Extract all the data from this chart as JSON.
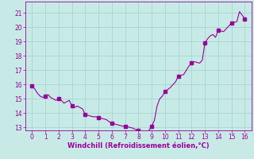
{
  "xlabel": "Windchill (Refroidissement éolien,°C)",
  "background_color": "#c8eae6",
  "line_color": "#990099",
  "marker_color": "#990099",
  "grid_color": "#aad8d4",
  "label_color": "#990099",
  "xlim": [
    -0.5,
    16.5
  ],
  "ylim": [
    12.8,
    21.8
  ],
  "xticks": [
    0,
    1,
    2,
    3,
    4,
    5,
    6,
    7,
    8,
    9,
    10,
    11,
    12,
    13,
    14,
    15,
    16
  ],
  "yticks": [
    13,
    14,
    15,
    16,
    17,
    18,
    19,
    20,
    21
  ],
  "x": [
    0.0,
    0.2,
    0.4,
    0.6,
    0.8,
    1.0,
    1.2,
    1.4,
    1.6,
    1.8,
    2.0,
    2.2,
    2.4,
    2.6,
    2.8,
    3.0,
    3.2,
    3.4,
    3.6,
    3.8,
    4.0,
    4.2,
    4.4,
    4.6,
    4.8,
    5.0,
    5.2,
    5.4,
    5.6,
    5.8,
    6.0,
    6.2,
    6.4,
    6.6,
    6.8,
    7.0,
    7.2,
    7.4,
    7.6,
    7.8,
    8.0,
    8.2,
    8.4,
    8.6,
    8.8,
    9.0,
    9.2,
    9.4,
    9.6,
    9.8,
    10.0,
    10.2,
    10.4,
    10.6,
    10.8,
    11.0,
    11.2,
    11.4,
    11.6,
    11.8,
    12.0,
    12.2,
    12.4,
    12.6,
    12.8,
    13.0,
    13.2,
    13.4,
    13.6,
    13.8,
    14.0,
    14.2,
    14.4,
    14.6,
    14.8,
    15.0,
    15.2,
    15.4,
    15.6,
    15.8,
    16.0
  ],
  "y": [
    15.9,
    15.7,
    15.4,
    15.2,
    15.1,
    15.2,
    15.3,
    15.1,
    15.0,
    14.9,
    15.0,
    14.9,
    14.7,
    14.8,
    14.9,
    14.5,
    14.4,
    14.5,
    14.4,
    14.3,
    13.9,
    13.85,
    13.8,
    13.75,
    13.75,
    13.7,
    13.65,
    13.6,
    13.55,
    13.4,
    13.3,
    13.25,
    13.2,
    13.15,
    13.1,
    13.1,
    13.05,
    13.0,
    12.95,
    12.85,
    12.8,
    12.75,
    12.72,
    12.75,
    12.8,
    13.1,
    13.5,
    14.5,
    15.0,
    15.2,
    15.5,
    15.65,
    15.8,
    16.0,
    16.2,
    16.6,
    16.65,
    16.7,
    17.0,
    17.3,
    17.5,
    17.6,
    17.55,
    17.5,
    17.7,
    18.9,
    19.2,
    19.4,
    19.5,
    19.3,
    19.8,
    19.75,
    19.7,
    19.9,
    20.1,
    20.3,
    20.35,
    20.4,
    21.1,
    20.85,
    20.6
  ],
  "marker_x": [
    0,
    1,
    2,
    3,
    4,
    5,
    6,
    7,
    8,
    9,
    10,
    11,
    12,
    13,
    14,
    15,
    16
  ],
  "marker_y": [
    15.9,
    15.2,
    15.0,
    14.5,
    13.9,
    13.7,
    13.3,
    13.1,
    12.8,
    13.1,
    15.5,
    16.6,
    17.5,
    18.9,
    19.8,
    20.3,
    20.6
  ],
  "marker_size": 3,
  "tick_fontsize": 5.5,
  "xlabel_fontsize": 6
}
